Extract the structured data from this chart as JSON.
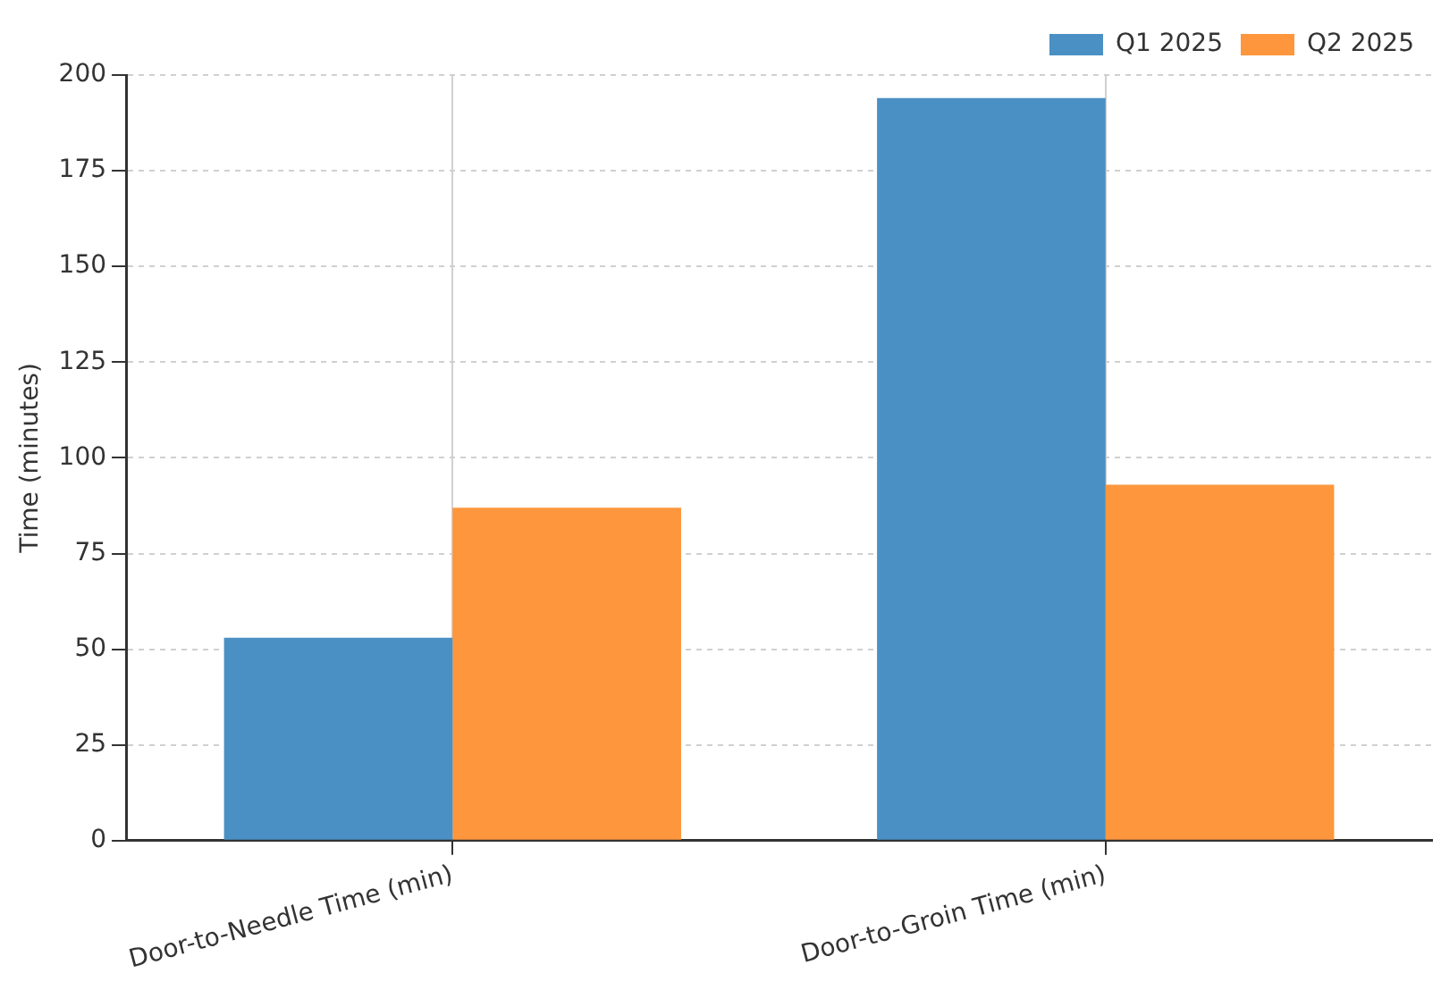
{
  "chart_data": {
    "type": "bar",
    "ylabel": "Time (minutes)",
    "categories": [
      "Door-to-Needle Time (min)",
      "Door-to-Groin Time (min)"
    ],
    "series": [
      {
        "name": "Q1 2025",
        "color": "#4a90c4",
        "values": [
          53,
          194
        ]
      },
      {
        "name": "Q2 2025",
        "color": "#fd963c",
        "values": [
          87,
          93
        ]
      }
    ],
    "ylim": [
      0,
      200
    ],
    "yticks": [
      0,
      25,
      50,
      75,
      100,
      125,
      150,
      175,
      200
    ],
    "grid": true,
    "legend": "top right"
  }
}
